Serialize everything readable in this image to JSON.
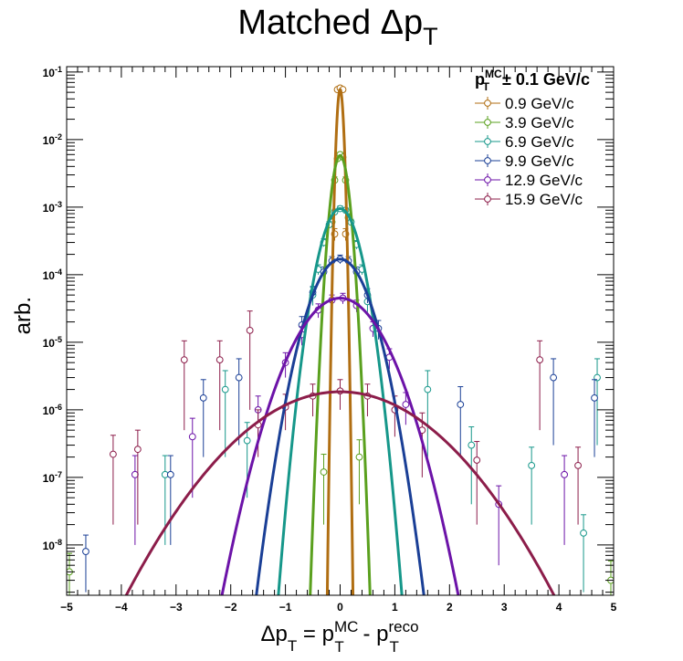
{
  "chart_data": {
    "type": "scatter",
    "title": {
      "main": "Matched Δp",
      "sub": "T"
    },
    "xlabel": {
      "a": "Δp",
      "a_sub": "T",
      "eq": " = p",
      "b_sup": "MC",
      "b_sub": "T",
      "dash": " - p",
      "c_sup": "reco",
      "c_sub": "T"
    },
    "ylabel": "arb.",
    "xlim": [
      -5,
      5
    ],
    "ylim": [
      1.8e-09,
      0.12
    ],
    "yscale": "log",
    "grid": false,
    "legend_placement": "top-right",
    "legend_header": {
      "p": "p",
      "sup": "MC",
      "sub": "T",
      "rest": "± 0.1 GeV/c"
    },
    "x_ticks": [
      -5,
      -4,
      -3,
      -2,
      -1,
      0,
      1,
      2,
      3,
      4,
      5
    ],
    "x_tick_labels": [
      "−5",
      "−4",
      "−3",
      "−2",
      "−1",
      "0",
      "1",
      "2",
      "3",
      "4",
      "5"
    ],
    "y_ticks": [
      {
        "exp": -8,
        "base": "10",
        "sup": "-8"
      },
      {
        "exp": -7,
        "base": "10",
        "sup": "-7"
      },
      {
        "exp": -6,
        "base": "10",
        "sup": "-6"
      },
      {
        "exp": -5,
        "base": "10",
        "sup": "-5"
      },
      {
        "exp": -4,
        "base": "10",
        "sup": "-4"
      },
      {
        "exp": -3,
        "base": "10",
        "sup": "-3"
      },
      {
        "exp": -2,
        "base": "10",
        "sup": "-2"
      },
      {
        "exp": -1,
        "base": "10",
        "sup": "-1"
      }
    ],
    "series": [
      {
        "name": "0.9 GeV/c",
        "color": "#b06e12",
        "fit": {
          "amp": 0.055,
          "mean": 0.0,
          "sigma": 0.04
        },
        "points": [
          {
            "x": -0.05,
            "y": 0.055,
            "err": 0.003
          },
          {
            "x": 0.0,
            "y": 0.058,
            "err": 0.003
          },
          {
            "x": 0.05,
            "y": 0.055,
            "err": 0.003
          },
          {
            "x": -0.1,
            "y": 0.0004,
            "err": 8e-05
          },
          {
            "x": 0.1,
            "y": 0.0004,
            "err": 8e-05
          }
        ]
      },
      {
        "name": "3.9 GeV/c",
        "color": "#5aa01e",
        "fit": {
          "amp": 0.0058,
          "mean": 0.0,
          "sigma": 0.1
        },
        "points": [
          {
            "x": -0.15,
            "y": 0.0006,
            "err": 0.0001
          },
          {
            "x": -0.1,
            "y": 0.0025,
            "err": 0.0003
          },
          {
            "x": -0.05,
            "y": 0.0052,
            "err": 0.0004
          },
          {
            "x": 0.0,
            "y": 0.006,
            "err": 0.0005
          },
          {
            "x": 0.05,
            "y": 0.0055,
            "err": 0.0004
          },
          {
            "x": 0.1,
            "y": 0.0025,
            "err": 0.0003
          },
          {
            "x": 0.15,
            "y": 0.0007,
            "err": 0.0001
          },
          {
            "x": -0.3,
            "y": 1.2e-07,
            "err": 1e-07
          },
          {
            "x": 0.35,
            "y": 2e-07,
            "err": 1.6e-07
          },
          {
            "x": -4.95,
            "y": 4e-09,
            "err": 3.5e-09
          },
          {
            "x": 4.95,
            "y": 3e-09,
            "err": 2.8e-09
          }
        ]
      },
      {
        "name": "6.9 GeV/c",
        "color": "#16978a",
        "fit": {
          "amp": 0.00095,
          "mean": 0.0,
          "sigma": 0.22
        },
        "points": [
          {
            "x": -0.5,
            "y": 5e-05,
            "err": 1.5e-05
          },
          {
            "x": -0.4,
            "y": 0.00012,
            "err": 2e-05
          },
          {
            "x": -0.3,
            "y": 0.0003,
            "err": 4e-05
          },
          {
            "x": -0.2,
            "y": 0.00055,
            "err": 6e-05
          },
          {
            "x": -0.1,
            "y": 0.00085,
            "err": 8e-05
          },
          {
            "x": 0.0,
            "y": 0.00095,
            "err": 9e-05
          },
          {
            "x": 0.1,
            "y": 0.0009,
            "err": 8e-05
          },
          {
            "x": 0.2,
            "y": 0.0006,
            "err": 6e-05
          },
          {
            "x": 0.3,
            "y": 0.00028,
            "err": 4e-05
          },
          {
            "x": 0.4,
            "y": 0.00012,
            "err": 2e-05
          },
          {
            "x": 0.5,
            "y": 4e-05,
            "err": 1.2e-05
          },
          {
            "x": -2.1,
            "y": 2e-06,
            "err": 1.8e-06
          },
          {
            "x": -1.7,
            "y": 3.5e-07,
            "err": 3e-07
          },
          {
            "x": -3.2,
            "y": 1.1e-07,
            "err": 1e-07
          },
          {
            "x": 1.6,
            "y": 2e-06,
            "err": 1.8e-06
          },
          {
            "x": 2.4,
            "y": 3e-07,
            "err": 2.6e-07
          },
          {
            "x": 3.5,
            "y": 1.5e-07,
            "err": 1.3e-07
          },
          {
            "x": 4.7,
            "y": 3e-06,
            "err": 2.7e-06
          },
          {
            "x": 4.45,
            "y": 1.5e-08,
            "err": 1.3e-08
          }
        ]
      },
      {
        "name": "9.9 GeV/c",
        "color": "#1a3f96",
        "fit": {
          "amp": 0.00017,
          "mean": 0.0,
          "sigma": 0.32
        },
        "points": [
          {
            "x": -0.7,
            "y": 1.8e-05,
            "err": 6e-06
          },
          {
            "x": -0.5,
            "y": 5.5e-05,
            "err": 1.2e-05
          },
          {
            "x": -0.3,
            "y": 0.00011,
            "err": 2e-05
          },
          {
            "x": -0.15,
            "y": 0.00016,
            "err": 2.5e-05
          },
          {
            "x": 0.0,
            "y": 0.00017,
            "err": 2.5e-05
          },
          {
            "x": 0.15,
            "y": 0.00016,
            "err": 2.5e-05
          },
          {
            "x": 0.3,
            "y": 0.00011,
            "err": 2e-05
          },
          {
            "x": 0.5,
            "y": 5e-05,
            "err": 1.2e-05
          },
          {
            "x": 0.7,
            "y": 1.6e-05,
            "err": 5e-06
          },
          {
            "x": -3.1,
            "y": 1.1e-07,
            "err": 1e-07
          },
          {
            "x": -2.5,
            "y": 1.5e-06,
            "err": 1.3e-06
          },
          {
            "x": -1.85,
            "y": 3e-06,
            "err": 2.7e-06
          },
          {
            "x": 2.2,
            "y": 1.2e-06,
            "err": 1e-06
          },
          {
            "x": 3.9,
            "y": 3e-06,
            "err": 2.7e-06
          },
          {
            "x": 4.65,
            "y": 1.5e-06,
            "err": 1.3e-06
          },
          {
            "x": -4.65,
            "y": 8e-09,
            "err": 6e-09
          }
        ]
      },
      {
        "name": "12.9 GeV/c",
        "color": "#6c13a8",
        "fit": {
          "amp": 4.5e-05,
          "mean": 0.0,
          "sigma": 0.48
        },
        "points": [
          {
            "x": -1.0,
            "y": 5e-06,
            "err": 2e-06
          },
          {
            "x": -0.7,
            "y": 1.3e-05,
            "err": 4e-06
          },
          {
            "x": -0.4,
            "y": 3e-05,
            "err": 7e-06
          },
          {
            "x": -0.15,
            "y": 4.2e-05,
            "err": 8e-06
          },
          {
            "x": 0.05,
            "y": 4.5e-05,
            "err": 8e-06
          },
          {
            "x": 0.3,
            "y": 3.5e-05,
            "err": 7e-06
          },
          {
            "x": 0.6,
            "y": 1.6e-05,
            "err": 4e-06
          },
          {
            "x": 0.9,
            "y": 6e-06,
            "err": 2e-06
          },
          {
            "x": 1.2,
            "y": 1.2e-06,
            "err": 6e-07
          },
          {
            "x": -1.5,
            "y": 1e-06,
            "err": 6e-07
          },
          {
            "x": -2.7,
            "y": 4e-07,
            "err": 3.5e-07
          },
          {
            "x": -3.75,
            "y": 1.1e-07,
            "err": 1e-07
          },
          {
            "x": 2.9,
            "y": 4e-08,
            "err": 3.5e-08
          },
          {
            "x": 4.1,
            "y": 1.1e-07,
            "err": 1e-07
          }
        ]
      },
      {
        "name": "15.9 GeV/c",
        "color": "#8c1d4a",
        "fit": {
          "amp": 1.85e-06,
          "mean": 0.0,
          "sigma": 1.05
        },
        "points": [
          {
            "x": -1.5,
            "y": 6e-07,
            "err": 4e-07
          },
          {
            "x": -1.0,
            "y": 1.1e-06,
            "err": 6e-07
          },
          {
            "x": -0.5,
            "y": 1.6e-06,
            "err": 8e-07
          },
          {
            "x": 0.0,
            "y": 1.9e-06,
            "err": 9e-07
          },
          {
            "x": 0.5,
            "y": 1.6e-06,
            "err": 8e-07
          },
          {
            "x": 1.0,
            "y": 1e-06,
            "err": 6e-07
          },
          {
            "x": 1.5,
            "y": 5e-07,
            "err": 4e-07
          },
          {
            "x": -4.15,
            "y": 2.2e-07,
            "err": 2e-07
          },
          {
            "x": -3.7,
            "y": 2.6e-07,
            "err": 2.4e-07
          },
          {
            "x": -2.85,
            "y": 5.5e-06,
            "err": 5e-06
          },
          {
            "x": -2.2,
            "y": 5.5e-06,
            "err": 5e-06
          },
          {
            "x": -1.65,
            "y": 1.5e-05,
            "err": 1.4e-05
          },
          {
            "x": 2.5,
            "y": 1.8e-07,
            "err": 1.6e-07
          },
          {
            "x": 3.65,
            "y": 5.5e-06,
            "err": 5e-06
          },
          {
            "x": 4.35,
            "y": 1.5e-07,
            "err": 1.3e-07
          }
        ]
      }
    ]
  }
}
